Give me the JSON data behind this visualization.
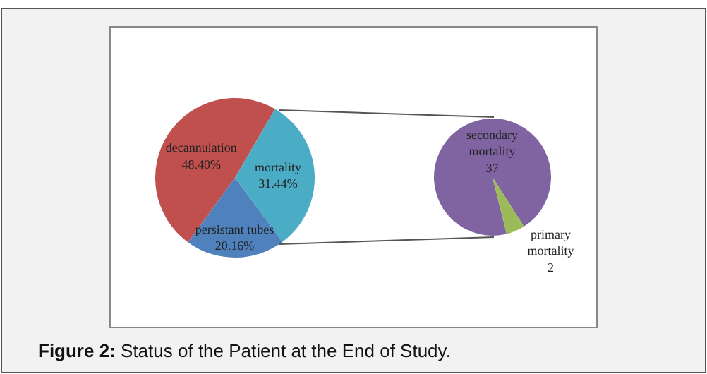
{
  "chart_data": [
    {
      "type": "pie",
      "categories": [
        "decannulation",
        "mortality",
        "persistant tubes"
      ],
      "values": [
        48.4,
        31.44,
        20.16
      ],
      "value_labels": [
        "48.40%",
        "31.44%",
        "20.16%"
      ],
      "colors": [
        "#c0504d",
        "#4bacc6",
        "#4f81bd"
      ],
      "annotations": [
        "Figure 2: Status of the Patient at the End of Study."
      ]
    },
    {
      "type": "pie",
      "categories": [
        "secondary mortality",
        "primary mortality"
      ],
      "values": [
        37,
        2
      ],
      "data_labels": true,
      "colors": [
        "#8064a2",
        "#9bbb59"
      ]
    }
  ]
}
